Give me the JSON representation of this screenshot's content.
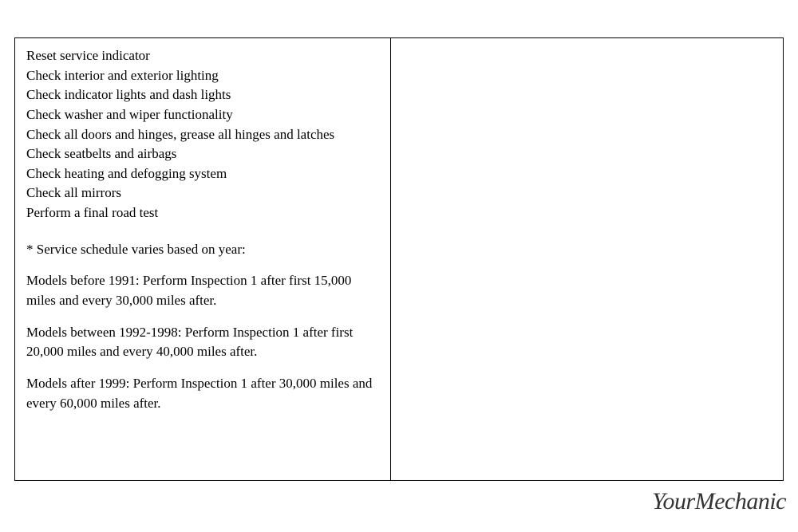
{
  "checklist": {
    "items": [
      "Reset service indicator",
      "Check interior and exterior lighting",
      "Check indicator lights and dash lights",
      "Check washer and wiper functionality",
      "Check all doors and hinges, grease all hinges and latches",
      "Check seatbelts and airbags",
      "Check heating and defogging system",
      "Check all mirrors",
      "Perform a final road test"
    ]
  },
  "footnote": {
    "header": "* Service schedule varies based on year:",
    "schedules": [
      "Models before 1991: Perform Inspection 1 after first 15,000 miles and every 30,000 miles after.",
      "Models between 1992-1998: Perform Inspection 1 after first 20,000 miles and every 40,000 miles after.",
      "Models after 1999: Perform Inspection 1 after 30,000 miles and every 60,000 miles after."
    ]
  },
  "branding": {
    "logo_text": "YourMechanic"
  },
  "style": {
    "table_border_color": "#000000",
    "background_color": "#ffffff",
    "text_color": "#000000",
    "font_size_body": 17,
    "font_family": "Georgia, serif",
    "logo_font_family": "Brush Script MT, cursive",
    "logo_color": "#333333",
    "logo_font_size": 30,
    "left_column_width_pct": 49,
    "right_column_width_pct": 51
  }
}
